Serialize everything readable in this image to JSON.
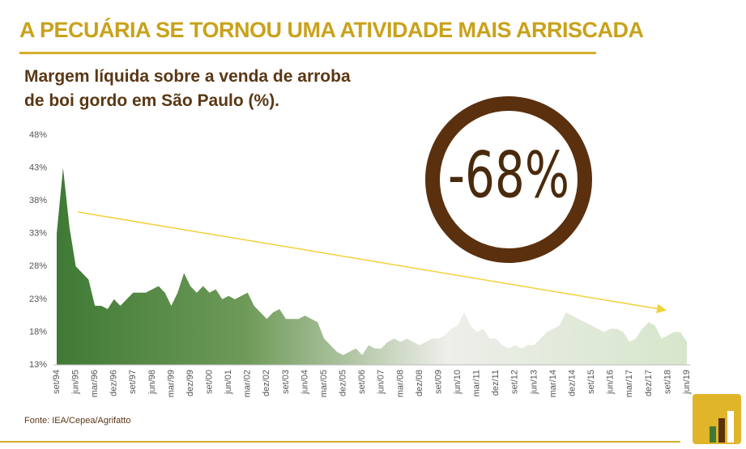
{
  "chart_data": {
    "type": "area",
    "title": "A PECUÁRIA SE TORNOU UMA ATIVIDADE MAIS ARRISCADA",
    "subtitle": "Margem líquida sobre a venda de arroba de boi gordo em São Paulo (%).",
    "annotation": "-68%",
    "source": "Fonte: IEA/Cepea/Agrifatto",
    "color": "#3f7a35",
    "ylim": [
      13,
      48
    ],
    "yticks": [
      {
        "value": 13,
        "label": "13%"
      },
      {
        "value": 18,
        "label": "18%"
      },
      {
        "value": 23,
        "label": "23%"
      },
      {
        "value": 28,
        "label": "28%"
      },
      {
        "value": 33,
        "label": "33%"
      },
      {
        "value": 38,
        "label": "38%"
      },
      {
        "value": 43,
        "label": "43%"
      },
      {
        "value": 48,
        "label": "48%"
      }
    ],
    "categories": [
      "set/94",
      null,
      null,
      "jun/95",
      null,
      null,
      "mar/96",
      null,
      null,
      "dez/96",
      null,
      null,
      "set/97",
      null,
      null,
      "jun/98",
      null,
      null,
      "mar/99",
      null,
      null,
      "dez/99",
      null,
      null,
      "set/00",
      null,
      null,
      "jun/01",
      null,
      null,
      "mar/02",
      null,
      null,
      "dez/02",
      null,
      null,
      "set/03",
      null,
      null,
      "jun/04",
      null,
      null,
      "mar/05",
      null,
      null,
      "dez/05",
      null,
      null,
      "set/06",
      null,
      null,
      "jun/07",
      null,
      null,
      "mar/08",
      null,
      null,
      "dez/08",
      null,
      null,
      "set/09",
      null,
      null,
      "jun/10",
      null,
      null,
      "mar/11",
      null,
      null,
      "dez/11",
      null,
      null,
      "set/12",
      null,
      null,
      "jun/13",
      null,
      null,
      "mar/14",
      null,
      null,
      "dez/14",
      null,
      null,
      "set/15",
      null,
      null,
      "jun/16",
      null,
      null,
      "mar/17",
      null,
      null,
      "dez/17",
      null,
      null,
      "set/18",
      null,
      null,
      "jun/19"
    ],
    "values": [
      33,
      43,
      34,
      28,
      27,
      26,
      22,
      22,
      21.5,
      23,
      22,
      23,
      24,
      24,
      24,
      24.5,
      25,
      24,
      22,
      24,
      27,
      25,
      24,
      25,
      24,
      24.5,
      23,
      23.5,
      23,
      23.5,
      24,
      22,
      21,
      20,
      21,
      21.5,
      20,
      20,
      20,
      20.5,
      20,
      19.5,
      17,
      16,
      15,
      14.5,
      15,
      15.5,
      14.5,
      16,
      15.5,
      15.5,
      16.5,
      17,
      16.5,
      17,
      16.5,
      16,
      16.5,
      17,
      17,
      17.5,
      18.5,
      19,
      21,
      19,
      18,
      18.5,
      17,
      17,
      16,
      15.5,
      16,
      15.5,
      16,
      16,
      17,
      18,
      18.5,
      19,
      21,
      20.5,
      20,
      19.5,
      19,
      18.5,
      18,
      18.5,
      18.5,
      18,
      16.5,
      17,
      18.5,
      19.5,
      19,
      17,
      17.5,
      18,
      18,
      16.5
    ]
  }
}
